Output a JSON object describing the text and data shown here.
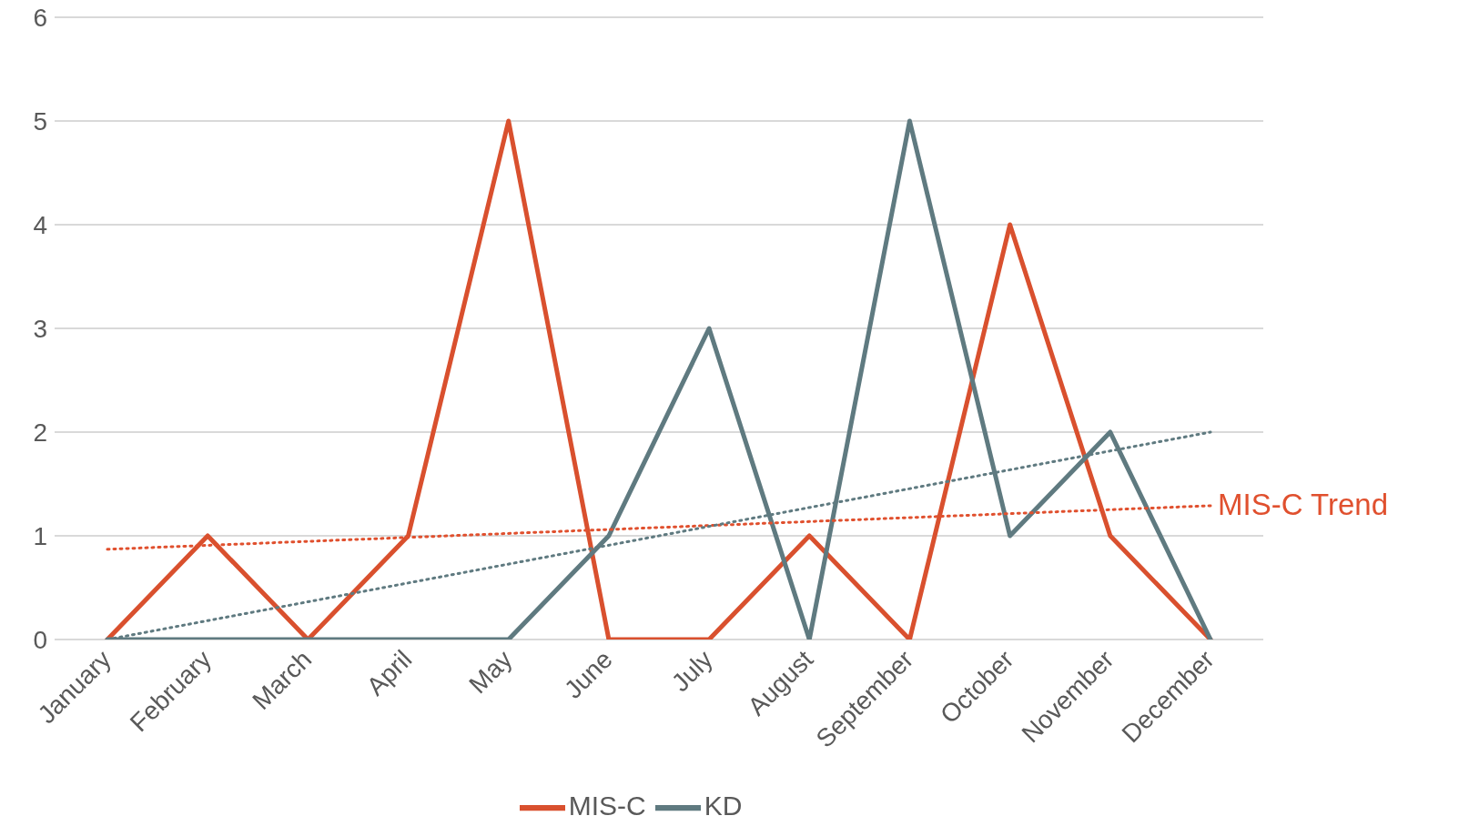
{
  "chart_data": {
    "type": "line",
    "categories": [
      "January",
      "February",
      "March",
      "April",
      "May",
      "June",
      "July",
      "August",
      "September",
      "October",
      "November",
      "December"
    ],
    "series": [
      {
        "name": "MIS-C",
        "color": "#d9502e",
        "values": [
          0,
          1,
          0,
          1,
          5,
          0,
          0,
          1,
          0,
          4,
          1,
          0
        ]
      },
      {
        "name": "KD",
        "color": "#5f7a80",
        "values": [
          0,
          0,
          0,
          0,
          0,
          1,
          3,
          0,
          5,
          1,
          2,
          0
        ]
      },
      {
        "name": "MIS-C Trend",
        "color": "#e0502e",
        "line_style": "dotted",
        "x": [
          "January",
          "December"
        ],
        "values": [
          0.87,
          1.29
        ]
      },
      {
        "color": "#5f7a80",
        "line_style": "dotted",
        "x": [
          "January",
          "December"
        ],
        "values": [
          0,
          2
        ]
      }
    ],
    "ylim": [
      0,
      6
    ],
    "yticks": [
      0,
      1,
      2,
      3,
      4,
      5,
      6
    ],
    "grid": "y",
    "legend": "bottom",
    "marker": "none",
    "line_style": "solid"
  }
}
